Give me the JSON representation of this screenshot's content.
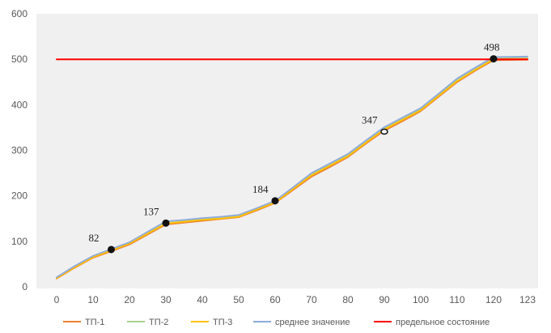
{
  "chart_data": {
    "type": "line",
    "title": "",
    "xlabel": "",
    "ylabel": "",
    "grid": false,
    "background_color": "#f0f0f0",
    "legend_position": "bottom",
    "x_ticks": [
      0,
      10,
      20,
      30,
      40,
      50,
      60,
      70,
      80,
      90,
      100,
      110,
      120,
      123
    ],
    "ylim": [
      0,
      600
    ],
    "y_ticks": [
      0,
      100,
      200,
      300,
      400,
      500,
      600
    ],
    "series": [
      {
        "name": "ТП-1",
        "color": "#ed7d31",
        "points": [
          [
            0,
            18
          ],
          [
            5,
            42
          ],
          [
            10,
            64
          ],
          [
            15,
            78
          ],
          [
            20,
            93
          ],
          [
            25,
            115
          ],
          [
            30,
            137
          ],
          [
            35,
            141
          ],
          [
            40,
            145
          ],
          [
            45,
            149
          ],
          [
            50,
            153
          ],
          [
            55,
            168
          ],
          [
            60,
            184
          ],
          [
            65,
            213
          ],
          [
            70,
            242
          ],
          [
            75,
            263
          ],
          [
            80,
            285
          ],
          [
            85,
            315
          ],
          [
            90,
            343
          ],
          [
            95,
            364
          ],
          [
            100,
            386
          ],
          [
            105,
            418
          ],
          [
            110,
            450
          ],
          [
            115,
            475
          ],
          [
            120,
            498
          ],
          [
            123,
            499
          ]
        ]
      },
      {
        "name": "ТП-2",
        "color": "#a9d18e",
        "points": [
          [
            0,
            20
          ],
          [
            5,
            45
          ],
          [
            10,
            67
          ],
          [
            15,
            82
          ],
          [
            20,
            97
          ],
          [
            25,
            120
          ],
          [
            30,
            143
          ],
          [
            35,
            146
          ],
          [
            40,
            150
          ],
          [
            45,
            153
          ],
          [
            50,
            157
          ],
          [
            55,
            172
          ],
          [
            60,
            188
          ],
          [
            65,
            218
          ],
          [
            70,
            248
          ],
          [
            75,
            269
          ],
          [
            80,
            290
          ],
          [
            85,
            320
          ],
          [
            90,
            349
          ],
          [
            95,
            370
          ],
          [
            100,
            391
          ],
          [
            105,
            423
          ],
          [
            110,
            456
          ],
          [
            115,
            480
          ],
          [
            120,
            503
          ],
          [
            123,
            504
          ]
        ]
      },
      {
        "name": "ТП-3",
        "color": "#ffc000",
        "points": [
          [
            0,
            19
          ],
          [
            5,
            43
          ],
          [
            10,
            65
          ],
          [
            15,
            80
          ],
          [
            20,
            95
          ],
          [
            25,
            117
          ],
          [
            30,
            139
          ],
          [
            35,
            143
          ],
          [
            40,
            147
          ],
          [
            45,
            150
          ],
          [
            50,
            154
          ],
          [
            55,
            170
          ],
          [
            60,
            185
          ],
          [
            65,
            215
          ],
          [
            70,
            245
          ],
          [
            75,
            266
          ],
          [
            80,
            287
          ],
          [
            85,
            317
          ],
          [
            90,
            346
          ],
          [
            95,
            367
          ],
          [
            100,
            388
          ],
          [
            105,
            420
          ],
          [
            110,
            452
          ],
          [
            115,
            477
          ],
          [
            120,
            500
          ],
          [
            123,
            501
          ]
        ]
      },
      {
        "name": "среднее значение",
        "color": "#8faadc",
        "points": [
          [
            0,
            21
          ],
          [
            5,
            46
          ],
          [
            10,
            68
          ],
          [
            15,
            83
          ],
          [
            20,
            98
          ],
          [
            25,
            121
          ],
          [
            30,
            144
          ],
          [
            35,
            147
          ],
          [
            40,
            151
          ],
          [
            45,
            154
          ],
          [
            50,
            158
          ],
          [
            55,
            173
          ],
          [
            60,
            189
          ],
          [
            65,
            219
          ],
          [
            70,
            250
          ],
          [
            75,
            271
          ],
          [
            80,
            292
          ],
          [
            85,
            322
          ],
          [
            90,
            351
          ],
          [
            95,
            372
          ],
          [
            100,
            393
          ],
          [
            105,
            425
          ],
          [
            110,
            458
          ],
          [
            115,
            482
          ],
          [
            120,
            505
          ],
          [
            123,
            506
          ]
        ]
      },
      {
        "name": "предельное состояние",
        "color": "#ff0000",
        "points": [
          [
            0,
            500
          ],
          [
            123,
            500
          ]
        ]
      }
    ],
    "markers": [
      {
        "x": 15,
        "y": 82,
        "label": "82",
        "label_position": "above-left"
      },
      {
        "x": 30,
        "y": 140,
        "label": "137",
        "label_position": "above-left"
      },
      {
        "x": 60,
        "y": 189,
        "label": "184",
        "label_position": "above-left"
      },
      {
        "x": 90,
        "y": 341,
        "label": "347",
        "label_position": "above-left",
        "hollow": true
      },
      {
        "x": 120,
        "y": 501,
        "label": "498",
        "label_position": "above"
      }
    ]
  }
}
